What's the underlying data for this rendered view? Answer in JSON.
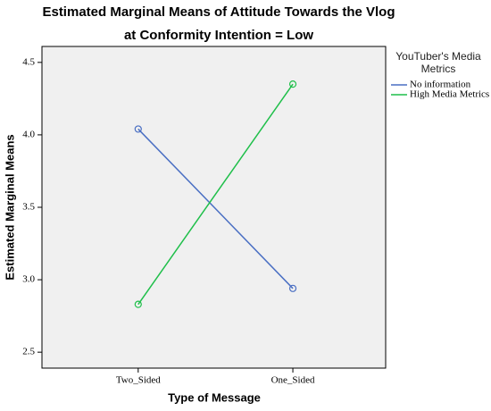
{
  "chart_data": {
    "type": "line",
    "title": "Estimated Marginal Means of Attitude Towards the Vlog",
    "subtitle": "at Conformity Intention = Low",
    "x_label": "Type of Message",
    "y_label": "Estimated Marginal Means",
    "categories": [
      "Two_Sided",
      "One_Sided"
    ],
    "series": [
      {
        "name": "No information",
        "color": "#4a6fc3",
        "values": [
          4.04,
          2.94
        ]
      },
      {
        "name": "High Media Metrics",
        "color": "#1fbf4a",
        "values": [
          2.83,
          4.35
        ]
      }
    ],
    "legend_title": "YouTuber's Media Metrics",
    "legend_position": "right",
    "ylim": [
      2.39,
      4.61
    ],
    "yticks": [
      2.5,
      {
        "value": 3,
        "label": "3.0"
      },
      3.5,
      {
        "value": 4,
        "label": "4.0"
      },
      4.5
    ],
    "grid": false
  }
}
